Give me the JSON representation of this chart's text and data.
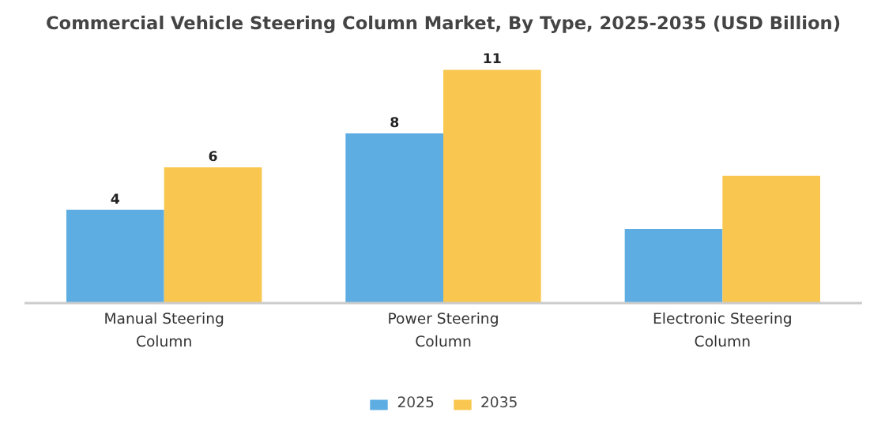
{
  "chart_data": {
    "type": "bar",
    "title": "Commercial Vehicle Steering Column Market, By Type, 2025-2035 (USD Billion)",
    "categories": [
      "Manual Steering\nColumn",
      "Power Steering\nColumn",
      "Electronic Steering\nColumn"
    ],
    "series": [
      {
        "name": "2025",
        "color": "#5dade2",
        "values": [
          4.4,
          8.0,
          3.5
        ],
        "value_labels": [
          "4",
          "8",
          null
        ]
      },
      {
        "name": "2035",
        "color": "#f9c74f",
        "values": [
          6.4,
          11.0,
          6.0
        ],
        "value_labels": [
          "6",
          "11",
          null
        ]
      }
    ],
    "legend": "bottom"
  }
}
